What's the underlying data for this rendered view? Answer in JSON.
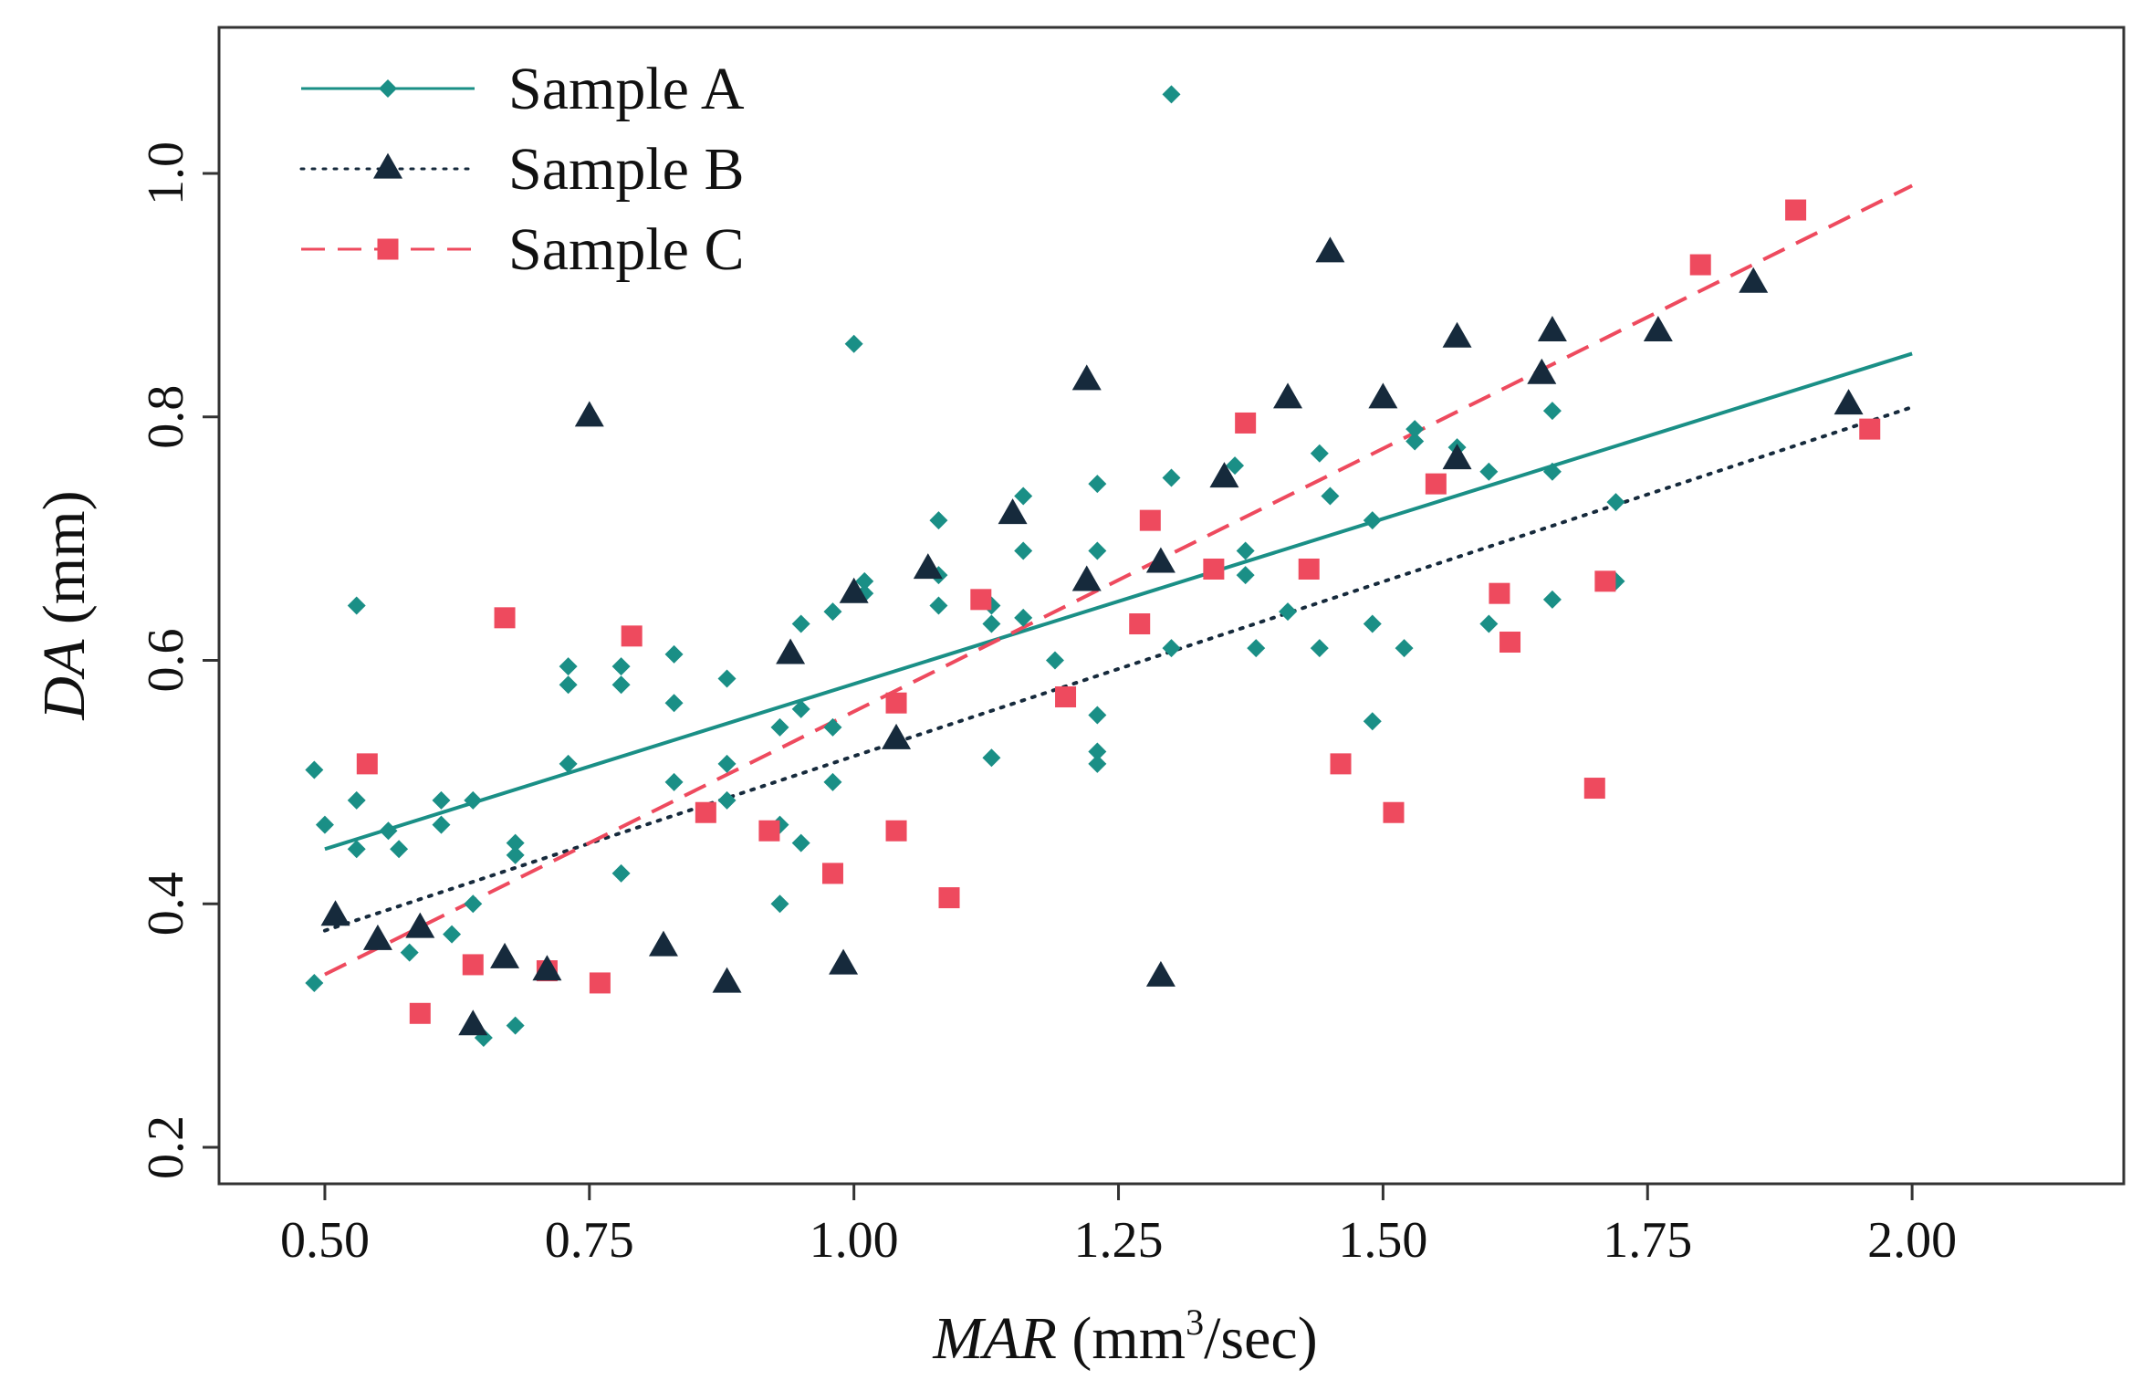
{
  "chart_data": {
    "type": "scatter",
    "title": "",
    "xlabel": "MAR",
    "xlabel_unit_prefix": " (mm",
    "xlabel_unit_sup": "3",
    "xlabel_unit_suffix": "/sec)",
    "ylabel": "DA",
    "ylabel_unit": " (mm)",
    "xlim": [
      0.4,
      2.2
    ],
    "ylim": [
      0.17,
      1.12
    ],
    "x_ticks": [
      0.5,
      0.75,
      1.0,
      1.25,
      1.5,
      1.75,
      2.0
    ],
    "x_tick_labels": [
      "0.50",
      "0.75",
      "1.00",
      "1.25",
      "1.50",
      "1.75",
      "2.00"
    ],
    "y_ticks": [
      0.2,
      0.4,
      0.6,
      0.8,
      1.0
    ],
    "y_tick_labels": [
      "0.2",
      "0.4",
      "0.6",
      "0.8",
      "1.0"
    ],
    "grid": false,
    "legend_position": "top-left",
    "series": [
      {
        "name": "Sample A",
        "color": "#1a8f86",
        "marker": "diamond",
        "line_style": "solid",
        "fit_line": {
          "x": [
            0.5,
            2.0
          ],
          "y": [
            0.445,
            0.852
          ]
        },
        "points": [
          [
            0.49,
            0.51
          ],
          [
            0.49,
            0.335
          ],
          [
            0.5,
            0.465
          ],
          [
            0.53,
            0.645
          ],
          [
            0.53,
            0.485
          ],
          [
            0.53,
            0.445
          ],
          [
            0.56,
            0.46
          ],
          [
            0.57,
            0.445
          ],
          [
            0.58,
            0.36
          ],
          [
            0.61,
            0.485
          ],
          [
            0.61,
            0.465
          ],
          [
            0.62,
            0.375
          ],
          [
            0.64,
            0.485
          ],
          [
            0.64,
            0.4
          ],
          [
            0.65,
            0.29
          ],
          [
            0.68,
            0.45
          ],
          [
            0.68,
            0.44
          ],
          [
            0.68,
            0.3
          ],
          [
            0.73,
            0.595
          ],
          [
            0.73,
            0.58
          ],
          [
            0.73,
            0.515
          ],
          [
            0.78,
            0.595
          ],
          [
            0.78,
            0.58
          ],
          [
            0.78,
            0.425
          ],
          [
            0.83,
            0.605
          ],
          [
            0.83,
            0.565
          ],
          [
            0.83,
            0.5
          ],
          [
            0.88,
            0.585
          ],
          [
            0.88,
            0.515
          ],
          [
            0.88,
            0.485
          ],
          [
            0.93,
            0.545
          ],
          [
            0.93,
            0.465
          ],
          [
            0.93,
            0.4
          ],
          [
            0.95,
            0.63
          ],
          [
            0.95,
            0.56
          ],
          [
            0.95,
            0.45
          ],
          [
            0.98,
            0.64
          ],
          [
            0.98,
            0.545
          ],
          [
            0.98,
            0.5
          ],
          [
            1.0,
            0.86
          ],
          [
            1.01,
            0.665
          ],
          [
            1.01,
            0.655
          ],
          [
            1.08,
            0.715
          ],
          [
            1.08,
            0.67
          ],
          [
            1.08,
            0.645
          ],
          [
            1.13,
            0.645
          ],
          [
            1.13,
            0.63
          ],
          [
            1.13,
            0.52
          ],
          [
            1.16,
            0.735
          ],
          [
            1.16,
            0.69
          ],
          [
            1.16,
            0.635
          ],
          [
            1.19,
            0.6
          ],
          [
            1.23,
            0.745
          ],
          [
            1.23,
            0.69
          ],
          [
            1.23,
            0.555
          ],
          [
            1.23,
            0.525
          ],
          [
            1.23,
            0.515
          ],
          [
            1.3,
            1.065
          ],
          [
            1.3,
            0.75
          ],
          [
            1.3,
            0.61
          ],
          [
            1.36,
            0.76
          ],
          [
            1.37,
            0.69
          ],
          [
            1.37,
            0.67
          ],
          [
            1.38,
            0.61
          ],
          [
            1.41,
            0.64
          ],
          [
            1.44,
            0.77
          ],
          [
            1.44,
            0.61
          ],
          [
            1.45,
            0.735
          ],
          [
            1.49,
            0.715
          ],
          [
            1.49,
            0.63
          ],
          [
            1.49,
            0.55
          ],
          [
            1.52,
            0.61
          ],
          [
            1.53,
            0.79
          ],
          [
            1.53,
            0.78
          ],
          [
            1.57,
            0.775
          ],
          [
            1.6,
            0.755
          ],
          [
            1.6,
            0.63
          ],
          [
            1.66,
            0.805
          ],
          [
            1.66,
            0.755
          ],
          [
            1.66,
            0.65
          ],
          [
            1.72,
            0.73
          ],
          [
            1.72,
            0.665
          ]
        ]
      },
      {
        "name": "Sample B",
        "color": "#162a3c",
        "marker": "triangle",
        "line_style": "dotted",
        "fit_line": {
          "x": [
            0.5,
            2.0
          ],
          "y": [
            0.378,
            0.808
          ]
        },
        "points": [
          [
            0.51,
            0.39
          ],
          [
            0.55,
            0.37
          ],
          [
            0.59,
            0.38
          ],
          [
            0.64,
            0.3
          ],
          [
            0.67,
            0.355
          ],
          [
            0.71,
            0.345
          ],
          [
            0.75,
            0.8
          ],
          [
            0.82,
            0.365
          ],
          [
            0.88,
            0.335
          ],
          [
            0.94,
            0.605
          ],
          [
            0.99,
            0.35
          ],
          [
            1.0,
            0.655
          ],
          [
            1.04,
            0.535
          ],
          [
            1.07,
            0.675
          ],
          [
            1.15,
            0.72
          ],
          [
            1.22,
            0.83
          ],
          [
            1.22,
            0.665
          ],
          [
            1.29,
            0.34
          ],
          [
            1.29,
            0.68
          ],
          [
            1.35,
            0.75
          ],
          [
            1.41,
            0.815
          ],
          [
            1.45,
            0.935
          ],
          [
            1.5,
            0.815
          ],
          [
            1.57,
            0.865
          ],
          [
            1.57,
            0.765
          ],
          [
            1.65,
            0.835
          ],
          [
            1.66,
            0.87
          ],
          [
            1.76,
            0.87
          ],
          [
            1.85,
            0.91
          ],
          [
            1.94,
            0.81
          ]
        ]
      },
      {
        "name": "Sample C",
        "color": "#ee4a5e",
        "marker": "square",
        "line_style": "dashed",
        "fit_line": {
          "x": [
            0.5,
            2.0
          ],
          "y": [
            0.342,
            0.99
          ]
        },
        "points": [
          [
            0.54,
            0.515
          ],
          [
            0.59,
            0.31
          ],
          [
            0.64,
            0.35
          ],
          [
            0.67,
            0.635
          ],
          [
            0.71,
            0.345
          ],
          [
            0.76,
            0.335
          ],
          [
            0.79,
            0.62
          ],
          [
            0.86,
            0.475
          ],
          [
            0.92,
            0.46
          ],
          [
            0.98,
            0.425
          ],
          [
            1.04,
            0.565
          ],
          [
            1.04,
            0.46
          ],
          [
            1.09,
            0.405
          ],
          [
            1.12,
            0.65
          ],
          [
            1.2,
            0.57
          ],
          [
            1.27,
            0.63
          ],
          [
            1.28,
            0.715
          ],
          [
            1.34,
            0.675
          ],
          [
            1.37,
            0.795
          ],
          [
            1.43,
            0.675
          ],
          [
            1.46,
            0.515
          ],
          [
            1.51,
            0.475
          ],
          [
            1.55,
            0.745
          ],
          [
            1.61,
            0.655
          ],
          [
            1.62,
            0.615
          ],
          [
            1.7,
            0.495
          ],
          [
            1.71,
            0.665
          ],
          [
            1.8,
            0.925
          ],
          [
            1.89,
            0.97
          ],
          [
            1.96,
            0.79
          ]
        ]
      }
    ]
  }
}
